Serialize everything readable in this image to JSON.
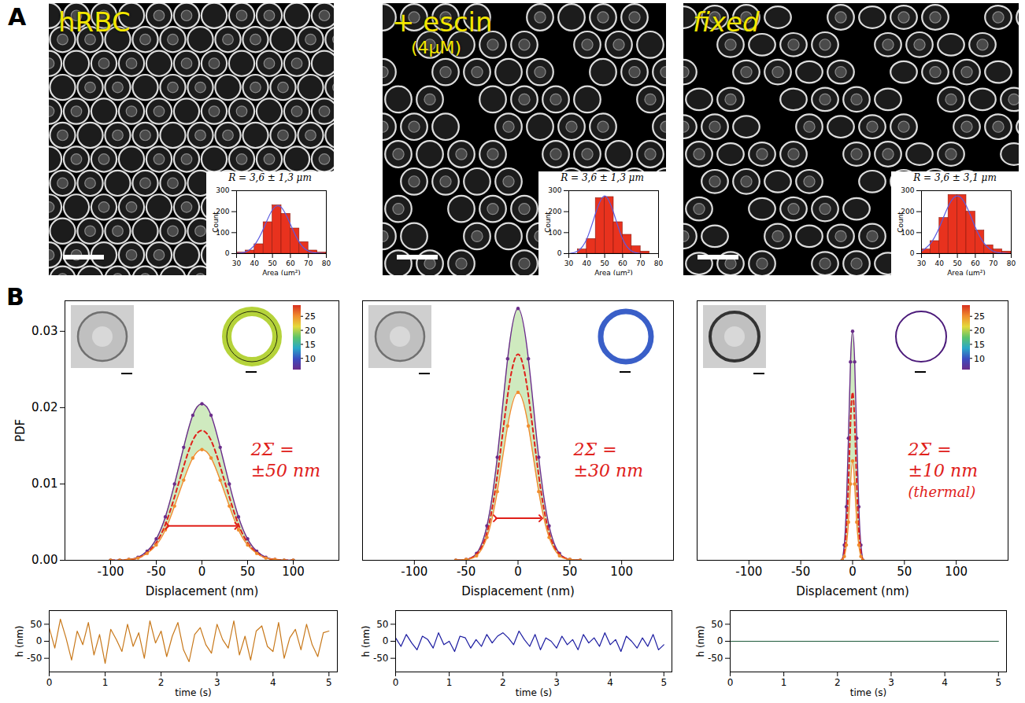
{
  "panel_labels": [
    "A",
    "B"
  ],
  "images": [
    {
      "title": "hRBC"
    },
    {
      "title": "+ escin",
      "subtitle": "(4μM)"
    },
    {
      "title": "fixed"
    }
  ],
  "chart_data": [
    {
      "type": "histogram",
      "title": "R = 3,6 ± 1,3 μm",
      "x_label": "Area (μm²)",
      "y_label": "Count",
      "bins": [
        30,
        35,
        40,
        45,
        50,
        55,
        60,
        65,
        70,
        75,
        80
      ],
      "counts": [
        5,
        15,
        45,
        150,
        230,
        190,
        120,
        55,
        15,
        5
      ],
      "color": "#e8321e",
      "xlim": [
        30,
        80
      ],
      "xticks": [
        30,
        40,
        50,
        60,
        70,
        80
      ],
      "ylim": [
        0,
        300
      ],
      "yticks": [
        0,
        100,
        200,
        300
      ],
      "fit": {
        "x": [
          30,
          35,
          40,
          45,
          50,
          55,
          60,
          65,
          70,
          75,
          80
        ],
        "values": [
          1,
          8,
          41,
          119,
          209,
          220,
          140,
          53,
          12,
          2,
          0
        ],
        "color": "#5a5ae0"
      }
    },
    {
      "type": "histogram",
      "title": "R = 3,6 ± 1,3 μm",
      "x_label": "Area (μm²)",
      "y_label": "Count",
      "bins": [
        35,
        40,
        45,
        50,
        55,
        60,
        65,
        70,
        75
      ],
      "counts": [
        20,
        70,
        265,
        270,
        150,
        90,
        35,
        10
      ],
      "color": "#e8321e",
      "xlim": [
        30,
        80
      ],
      "xticks": [
        30,
        40,
        50,
        60,
        70,
        80
      ],
      "ylim": [
        0,
        300
      ],
      "yticks": [
        0,
        100,
        200,
        300
      ],
      "fit": {
        "x": [
          30,
          35,
          40,
          45,
          50,
          55,
          60,
          65,
          70,
          75,
          80
        ],
        "values": [
          0,
          12,
          69,
          194,
          275,
          194,
          69,
          12,
          1,
          0,
          0
        ],
        "color": "#5a5ae0"
      }
    },
    {
      "type": "histogram",
      "title": "R = 3,6 ± 3,1 μm",
      "x_label": "Area (μm²)",
      "y_label": "Count",
      "bins": [
        30,
        35,
        40,
        45,
        50,
        55,
        60,
        65,
        70,
        75,
        80
      ],
      "counts": [
        20,
        60,
        170,
        280,
        280,
        200,
        110,
        40,
        20,
        10
      ],
      "color": "#e8321e",
      "xlim": [
        30,
        80
      ],
      "xticks": [
        30,
        40,
        50,
        60,
        70,
        80
      ],
      "ylim": [
        0,
        300
      ],
      "yticks": [
        0,
        100,
        200,
        300
      ],
      "fit": {
        "x": [
          30,
          35,
          40,
          45,
          50,
          55,
          60,
          65,
          70,
          75,
          80
        ],
        "values": [
          11,
          48,
          126,
          227,
          275,
          227,
          126,
          48,
          11,
          2,
          0
        ],
        "color": "#5a5ae0"
      }
    },
    {
      "type": "line",
      "x_label": "Displacement (nm)",
      "y_label": "PDF",
      "x": [
        -100,
        -90,
        -80,
        -70,
        -60,
        -50,
        -40,
        -30,
        -20,
        -10,
        0,
        10,
        20,
        30,
        40,
        50,
        60,
        70,
        80,
        90,
        100
      ],
      "series": [
        {
          "color": "#6a2c8a",
          "marker": "dot",
          "values": [
            0,
            0,
            0.0001,
            0.0004,
            0.0012,
            0.0028,
            0.0057,
            0.01,
            0.0148,
            0.019,
            0.0205,
            0.019,
            0.0148,
            0.01,
            0.0057,
            0.0028,
            0.0012,
            0.0004,
            0.0001,
            0,
            0
          ]
        },
        {
          "color": "#e0201a",
          "line_style": "dashed",
          "values": [
            0,
            0,
            0.0001,
            0.0003,
            0.001,
            0.0023,
            0.0047,
            0.0083,
            0.0123,
            0.0157,
            0.017,
            0.0157,
            0.0123,
            0.0083,
            0.0047,
            0.0023,
            0.001,
            0.0003,
            0.0001,
            0,
            0
          ]
        },
        {
          "color": "#f08c2e",
          "marker": "dot",
          "values": [
            0,
            0,
            0.0001,
            0.0003,
            0.0009,
            0.002,
            0.004,
            0.0071,
            0.0105,
            0.0134,
            0.0145,
            0.0134,
            0.0105,
            0.0071,
            0.004,
            0.002,
            0.0009,
            0.0003,
            0.0001,
            0,
            0
          ]
        }
      ],
      "xlim": [
        -150,
        150
      ],
      "xticks": [
        -100,
        -50,
        0,
        50,
        100
      ],
      "ylim": [
        0,
        0.034
      ],
      "yticks": [
        {
          "value": 0,
          "label": "0.00"
        },
        {
          "value": 0.01,
          "label": "0.01"
        },
        {
          "value": 0.02,
          "label": "0.02"
        },
        {
          "value": 0.03,
          "label": "0.03"
        }
      ],
      "annotation": [
        "2Σ =",
        "±50 nm"
      ],
      "arrow": {
        "x": [
          -38,
          38
        ],
        "y": 0.0045
      },
      "ring_color": "#b5d33a",
      "colorbar": {
        "range": [
          6,
          29
        ],
        "ticks": [
          10,
          15,
          20,
          25
        ]
      }
    },
    {
      "type": "line",
      "x_label": "Displacement (nm)",
      "x": [
        -60,
        -50,
        -40,
        -30,
        -20,
        -10,
        0,
        10,
        20,
        30,
        40,
        50,
        60
      ],
      "series": [
        {
          "color": "#6a2c8a",
          "marker": "dot",
          "values": [
            0,
            0.0001,
            0.0009,
            0.0045,
            0.0135,
            0.0264,
            0.033,
            0.0264,
            0.0135,
            0.0045,
            0.0009,
            0.0001,
            0
          ]
        },
        {
          "color": "#e0201a",
          "line_style": "dashed",
          "values": [
            0,
            0.0001,
            0.0008,
            0.0036,
            0.0111,
            0.0216,
            0.027,
            0.0216,
            0.0111,
            0.0036,
            0.0008,
            0.0001,
            0
          ]
        },
        {
          "color": "#f08c2e",
          "marker": "dot",
          "values": [
            0,
            0.0001,
            0.0006,
            0.003,
            0.009,
            0.0176,
            0.022,
            0.0176,
            0.009,
            0.003,
            0.0006,
            0.0001,
            0
          ]
        }
      ],
      "xlim": [
        -150,
        150
      ],
      "xticks": [
        -100,
        -50,
        0,
        50,
        100
      ],
      "ylim": [
        0,
        0.034
      ],
      "tick_labels": "x",
      "annotation": [
        "2Σ =",
        "±30 nm"
      ],
      "arrow": {
        "x": [
          -22,
          22
        ],
        "y": 0.0055
      },
      "ring_color": "#3a5fc8"
    },
    {
      "type": "line",
      "x_label": "Displacement (nm)",
      "x": [
        -10,
        -8,
        -6,
        -4,
        -2,
        0,
        2,
        4,
        6,
        8,
        10
      ],
      "series": [
        {
          "color": "#6a2c8a",
          "marker": "dot",
          "values": [
            0,
            0.002,
            0.007,
            0.016,
            0.026,
            0.03,
            0.026,
            0.016,
            0.007,
            0.002,
            0
          ]
        },
        {
          "color": "#e0201a",
          "line_style": "dashed",
          "values": [
            0,
            0.001,
            0.004,
            0.01,
            0.018,
            0.022,
            0.018,
            0.01,
            0.004,
            0.001,
            0
          ]
        },
        {
          "color": "#f08c2e",
          "marker": "dot",
          "values": [
            0,
            0.0005,
            0.002,
            0.005,
            0.01,
            0.013,
            0.01,
            0.005,
            0.002,
            0.0005,
            0
          ]
        }
      ],
      "xlim": [
        -150,
        150
      ],
      "xticks": [
        -100,
        -50,
        0,
        50,
        100
      ],
      "ylim": [
        0,
        0.034
      ],
      "tick_labels": "x",
      "annotation": [
        "2Σ =",
        "±10 nm",
        "(thermal)"
      ],
      "ring_color": "#4b1a7a",
      "colorbar": {
        "range": [
          6,
          29
        ],
        "ticks": [
          10,
          15,
          20,
          25
        ]
      }
    },
    {
      "type": "line",
      "x_label": "time (s)",
      "y_label": "h (nm)",
      "x": [
        0,
        0.1,
        0.2,
        0.3,
        0.4,
        0.5,
        0.6,
        0.7,
        0.8,
        0.9,
        1,
        1.1,
        1.2,
        1.3,
        1.4,
        1.5,
        1.6,
        1.7,
        1.8,
        1.9,
        2,
        2.1,
        2.2,
        2.3,
        2.4,
        2.5,
        2.6,
        2.7,
        2.8,
        2.9,
        3,
        3.1,
        3.2,
        3.3,
        3.4,
        3.5,
        3.6,
        3.7,
        3.8,
        3.9,
        4,
        4.1,
        4.2,
        4.3,
        4.4,
        4.5,
        4.6,
        4.7,
        4.8,
        4.9,
        5
      ],
      "series": [
        {
          "color": "#c8781a",
          "values": [
            40,
            -20,
            65,
            10,
            -55,
            30,
            -10,
            55,
            -40,
            20,
            -65,
            35,
            5,
            -30,
            50,
            -15,
            25,
            -50,
            60,
            -5,
            30,
            -45,
            15,
            55,
            -25,
            -60,
            20,
            40,
            -10,
            -35,
            50,
            5,
            -20,
            60,
            -40,
            15,
            -55,
            30,
            45,
            -15,
            -30,
            55,
            -50,
            10,
            35,
            -25,
            50,
            -10,
            -45,
            25,
            30
          ]
        }
      ],
      "xlim": [
        0,
        5.15
      ],
      "xticks": [
        0,
        1,
        2,
        3,
        4,
        5
      ],
      "ylim": [
        -90,
        90
      ],
      "yticks": [
        -50,
        0,
        50
      ]
    },
    {
      "type": "line",
      "x_label": "time (s)",
      "y_label": "h (nm)",
      "x": [
        0,
        0.1,
        0.2,
        0.3,
        0.4,
        0.5,
        0.6,
        0.7,
        0.8,
        0.9,
        1,
        1.1,
        1.2,
        1.3,
        1.4,
        1.5,
        1.6,
        1.7,
        1.8,
        1.9,
        2,
        2.1,
        2.2,
        2.3,
        2.4,
        2.5,
        2.6,
        2.7,
        2.8,
        2.9,
        3,
        3.1,
        3.2,
        3.3,
        3.4,
        3.5,
        3.6,
        3.7,
        3.8,
        3.9,
        4,
        4.1,
        4.2,
        4.3,
        4.4,
        4.5,
        4.6,
        4.7,
        4.8,
        4.9,
        5
      ],
      "series": [
        {
          "color": "#1a1aa0",
          "values": [
            10,
            -15,
            20,
            -5,
            -25,
            15,
            5,
            -20,
            25,
            -10,
            0,
            -30,
            15,
            10,
            -20,
            5,
            -15,
            20,
            -5,
            15,
            25,
            10,
            -10,
            30,
            5,
            -15,
            20,
            -25,
            10,
            0,
            -20,
            15,
            -10,
            5,
            -25,
            20,
            -5,
            10,
            -15,
            25,
            -10,
            5,
            -30,
            15,
            0,
            -20,
            10,
            -15,
            20,
            -25,
            -10
          ]
        }
      ],
      "xlim": [
        0,
        5.15
      ],
      "xticks": [
        0,
        1,
        2,
        3,
        4,
        5
      ],
      "ylim": [
        -90,
        90
      ],
      "yticks": [
        -50,
        0,
        50
      ]
    },
    {
      "type": "line",
      "x_label": "time (s)",
      "y_label": "h (nm)",
      "x": [
        0,
        0.1,
        0.2,
        0.3,
        0.4,
        0.5,
        0.6,
        0.7,
        0.8,
        0.9,
        1,
        1.1,
        1.2,
        1.3,
        1.4,
        1.5,
        1.6,
        1.7,
        1.8,
        1.9,
        2,
        2.1,
        2.2,
        2.3,
        2.4,
        2.5,
        2.6,
        2.7,
        2.8,
        2.9,
        3,
        3.1,
        3.2,
        3.3,
        3.4,
        3.5,
        3.6,
        3.7,
        3.8,
        3.9,
        4,
        4.1,
        4.2,
        4.3,
        4.4,
        4.5,
        4.6,
        4.7,
        4.8,
        4.9,
        5
      ],
      "series": [
        {
          "color": "#1f5a3a",
          "values": [
            0,
            0,
            0,
            0,
            0,
            0,
            0,
            0,
            0,
            0,
            0,
            0,
            0,
            0,
            0,
            0,
            0,
            0,
            0,
            0,
            0,
            0,
            0,
            0,
            0,
            0,
            0,
            0,
            0,
            0,
            0,
            0,
            0,
            0,
            0,
            0,
            0,
            0,
            0,
            0,
            0,
            0,
            0,
            0,
            0,
            0,
            0,
            0,
            0,
            0,
            0
          ]
        }
      ],
      "xlim": [
        0,
        5.15
      ],
      "xticks": [
        0,
        1,
        2,
        3,
        4,
        5
      ],
      "ylim": [
        -90,
        90
      ],
      "yticks": [
        -50,
        0,
        50
      ]
    }
  ]
}
